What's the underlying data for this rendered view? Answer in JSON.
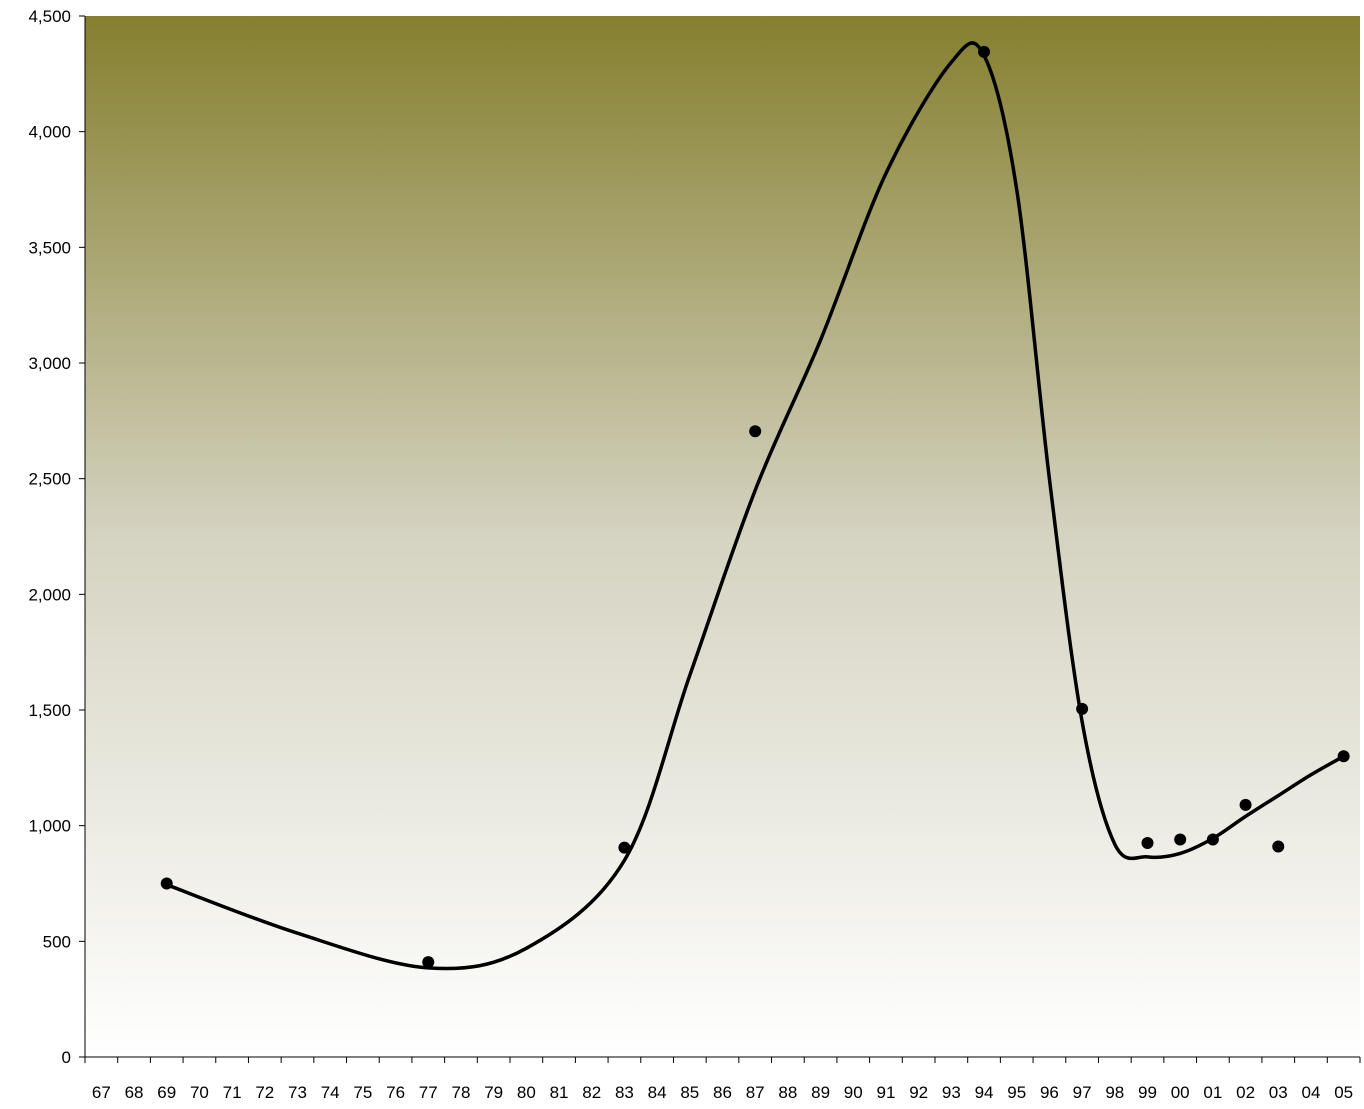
{
  "chart_data": {
    "type": "scatter",
    "title": "",
    "xlabel": "",
    "ylabel": "",
    "x_categories": [
      "67",
      "68",
      "69",
      "70",
      "71",
      "72",
      "73",
      "74",
      "75",
      "76",
      "77",
      "78",
      "79",
      "80",
      "81",
      "82",
      "83",
      "84",
      "85",
      "86",
      "87",
      "88",
      "89",
      "90",
      "91",
      "92",
      "93",
      "94",
      "95",
      "96",
      "97",
      "98",
      "99",
      "00",
      "01",
      "02",
      "03",
      "04",
      "05"
    ],
    "y_ticks": [
      "0",
      "500",
      "1,000",
      "1,500",
      "2,000",
      "2,500",
      "3,000",
      "3,500",
      "4,000",
      "4,500"
    ],
    "ylim": [
      0,
      4500
    ],
    "grid": false,
    "background": {
      "top": "#857f2e",
      "bottom": "#ffffff"
    },
    "series": [
      {
        "marker": "circle",
        "color": "#000000",
        "points": [
          {
            "x": "69",
            "y": 750
          },
          {
            "x": "77",
            "y": 410
          },
          {
            "x": "83",
            "y": 905
          },
          {
            "x": "87",
            "y": 2705
          },
          {
            "x": "94",
            "y": 4345
          },
          {
            "x": "97",
            "y": 1505
          },
          {
            "x": "99",
            "y": 925
          },
          {
            "x": "00",
            "y": 940
          },
          {
            "x": "01",
            "y": 940
          },
          {
            "x": "02",
            "y": 1090
          },
          {
            "x": "03",
            "y": 910
          },
          {
            "x": "05",
            "y": 1300
          }
        ]
      }
    ],
    "trendline": {
      "color": "#000000",
      "points": [
        {
          "x": "69",
          "y": 745
        },
        {
          "x": "73",
          "y": 535
        },
        {
          "x": "77",
          "y": 385
        },
        {
          "x": "80",
          "y": 470
        },
        {
          "x": "83",
          "y": 850
        },
        {
          "x": "85",
          "y": 1650
        },
        {
          "x": "87",
          "y": 2450
        },
        {
          "x": "89",
          "y": 3100
        },
        {
          "x": "91",
          "y": 3820
        },
        {
          "x": "93",
          "y": 4300
        },
        {
          "x": "94",
          "y": 4330
        },
        {
          "x": "95",
          "y": 3750
        },
        {
          "x": "96",
          "y": 2500
        },
        {
          "x": "97",
          "y": 1450
        },
        {
          "x": "98",
          "y": 920
        },
        {
          "x": "99",
          "y": 865
        },
        {
          "x": "00",
          "y": 880
        },
        {
          "x": "01",
          "y": 945
        },
        {
          "x": "02",
          "y": 1040
        },
        {
          "x": "03",
          "y": 1130
        },
        {
          "x": "04",
          "y": 1220
        },
        {
          "x": "05",
          "y": 1300
        }
      ]
    }
  }
}
